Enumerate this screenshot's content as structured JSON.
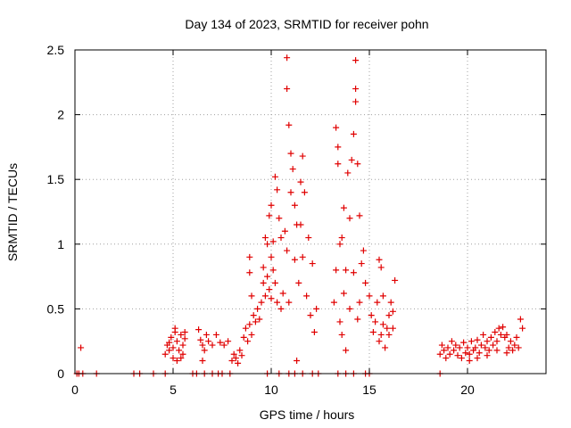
{
  "chart_data": {
    "type": "scatter",
    "title": "Day 134 of 2023, SRMTID for receiver pohn",
    "xlabel": "GPS time / hours",
    "ylabel": "SRMTID / TECUs",
    "xlim": [
      0,
      24
    ],
    "ylim": [
      0,
      2.5
    ],
    "xticks": [
      0,
      5,
      10,
      15,
      20
    ],
    "yticks": [
      0,
      0.5,
      1,
      1.5,
      2,
      2.5
    ],
    "xtick_labels": [
      "0",
      "5",
      "10",
      "15",
      "20"
    ],
    "ytick_labels": [
      "0",
      "0.5",
      "1",
      "1.5",
      "2",
      "2.5"
    ],
    "grid": true,
    "marker": "+",
    "color": "#e00000",
    "series": [
      {
        "name": "SRMTID",
        "points": [
          [
            0.3,
            0.2
          ],
          [
            0.1,
            0
          ],
          [
            0.2,
            0
          ],
          [
            0.4,
            0
          ],
          [
            1.1,
            0
          ],
          [
            3.0,
            0
          ],
          [
            3.3,
            0
          ],
          [
            4.0,
            0
          ],
          [
            4.6,
            0
          ],
          [
            6.0,
            0
          ],
          [
            6.2,
            0
          ],
          [
            6.6,
            0
          ],
          [
            7.0,
            0
          ],
          [
            7.3,
            0
          ],
          [
            7.5,
            0
          ],
          [
            7.9,
            0
          ],
          [
            9.8,
            0
          ],
          [
            10.4,
            0
          ],
          [
            10.9,
            0
          ],
          [
            11.2,
            0
          ],
          [
            11.6,
            0
          ],
          [
            12.1,
            0
          ],
          [
            12.4,
            0
          ],
          [
            13.4,
            0
          ],
          [
            13.8,
            0
          ],
          [
            14.2,
            0
          ],
          [
            14.8,
            0
          ],
          [
            15.0,
            0
          ],
          [
            18.6,
            0
          ],
          [
            4.6,
            0.15
          ],
          [
            4.7,
            0.22
          ],
          [
            4.8,
            0.18
          ],
          [
            4.9,
            0.28
          ],
          [
            5.0,
            0.2
          ],
          [
            5.1,
            0.32
          ],
          [
            5.2,
            0.25
          ],
          [
            5.3,
            0.18
          ],
          [
            5.4,
            0.3
          ],
          [
            5.5,
            0.22
          ],
          [
            5.6,
            0.27
          ],
          [
            5.0,
            0.12
          ],
          [
            5.2,
            0.1
          ],
          [
            5.4,
            0.12
          ],
          [
            5.1,
            0.35
          ],
          [
            4.8,
            0.24
          ],
          [
            5.5,
            0.15
          ],
          [
            5.6,
            0.32
          ],
          [
            6.3,
            0.34
          ],
          [
            6.4,
            0.26
          ],
          [
            6.5,
            0.22
          ],
          [
            6.6,
            0.18
          ],
          [
            6.8,
            0.25
          ],
          [
            7.0,
            0.22
          ],
          [
            7.2,
            0.3
          ],
          [
            7.4,
            0.24
          ],
          [
            7.6,
            0.22
          ],
          [
            7.8,
            0.25
          ],
          [
            6.5,
            0.1
          ],
          [
            6.7,
            0.3
          ],
          [
            8.0,
            0.1
          ],
          [
            8.1,
            0.15
          ],
          [
            8.2,
            0.12
          ],
          [
            8.3,
            0.08
          ],
          [
            8.4,
            0.18
          ],
          [
            8.5,
            0.14
          ],
          [
            8.6,
            0.28
          ],
          [
            8.7,
            0.35
          ],
          [
            8.8,
            0.25
          ],
          [
            8.9,
            0.38
          ],
          [
            9.0,
            0.3
          ],
          [
            9.1,
            0.45
          ],
          [
            9.2,
            0.4
          ],
          [
            9.3,
            0.5
          ],
          [
            9.4,
            0.42
          ],
          [
            8.9,
            0.78
          ],
          [
            8.9,
            0.9
          ],
          [
            9.0,
            0.6
          ],
          [
            9.5,
            0.55
          ],
          [
            9.6,
            0.7
          ],
          [
            9.6,
            0.82
          ],
          [
            9.7,
            0.6
          ],
          [
            9.7,
            1.05
          ],
          [
            9.8,
            0.75
          ],
          [
            9.8,
            1.0
          ],
          [
            9.9,
            0.65
          ],
          [
            9.9,
            1.22
          ],
          [
            10.0,
            0.58
          ],
          [
            10.0,
            0.9
          ],
          [
            10.0,
            1.3
          ],
          [
            10.1,
            0.8
          ],
          [
            10.1,
            1.02
          ],
          [
            10.2,
            0.7
          ],
          [
            10.2,
            1.52
          ],
          [
            10.3,
            0.55
          ],
          [
            10.3,
            1.42
          ],
          [
            10.4,
            1.2
          ],
          [
            10.5,
            0.5
          ],
          [
            10.5,
            1.05
          ],
          [
            10.6,
            0.62
          ],
          [
            10.7,
            1.1
          ],
          [
            10.8,
            0.95
          ],
          [
            10.8,
            2.2
          ],
          [
            10.8,
            2.44
          ],
          [
            10.9,
            1.92
          ],
          [
            10.9,
            0.55
          ],
          [
            11.0,
            1.7
          ],
          [
            11.0,
            1.4
          ],
          [
            11.1,
            1.58
          ],
          [
            11.2,
            1.3
          ],
          [
            11.2,
            0.88
          ],
          [
            11.3,
            0.1
          ],
          [
            11.3,
            1.15
          ],
          [
            11.4,
            0.7
          ],
          [
            11.5,
            1.48
          ],
          [
            11.5,
            1.15
          ],
          [
            11.6,
            1.68
          ],
          [
            11.6,
            0.9
          ],
          [
            11.7,
            1.4
          ],
          [
            11.8,
            0.6
          ],
          [
            11.9,
            1.05
          ],
          [
            12.0,
            0.45
          ],
          [
            12.1,
            0.85
          ],
          [
            12.2,
            0.32
          ],
          [
            12.3,
            0.5
          ],
          [
            13.2,
            0.55
          ],
          [
            13.3,
            0.8
          ],
          [
            13.3,
            1.9
          ],
          [
            13.4,
            1.75
          ],
          [
            13.4,
            1.62
          ],
          [
            13.5,
            1.0
          ],
          [
            13.5,
            0.4
          ],
          [
            13.6,
            1.05
          ],
          [
            13.6,
            0.3
          ],
          [
            13.7,
            1.28
          ],
          [
            13.7,
            0.62
          ],
          [
            13.8,
            0.8
          ],
          [
            13.8,
            0.18
          ],
          [
            13.9,
            1.55
          ],
          [
            14.0,
            1.2
          ],
          [
            14.0,
            0.5
          ],
          [
            14.1,
            1.65
          ],
          [
            14.2,
            1.85
          ],
          [
            14.2,
            0.78
          ],
          [
            14.3,
            2.1
          ],
          [
            14.3,
            2.2
          ],
          [
            14.3,
            2.42
          ],
          [
            14.4,
            1.62
          ],
          [
            14.4,
            0.42
          ],
          [
            14.5,
            1.22
          ],
          [
            14.5,
            0.55
          ],
          [
            14.6,
            0.85
          ],
          [
            14.7,
            0.95
          ],
          [
            14.8,
            0.7
          ],
          [
            15.0,
            0.6
          ],
          [
            15.1,
            0.45
          ],
          [
            15.2,
            0.32
          ],
          [
            15.3,
            0.4
          ],
          [
            15.4,
            0.55
          ],
          [
            15.5,
            0.88
          ],
          [
            15.5,
            0.25
          ],
          [
            15.6,
            0.3
          ],
          [
            15.7,
            0.38
          ],
          [
            15.8,
            0.2
          ],
          [
            15.9,
            0.35
          ],
          [
            16.0,
            0.45
          ],
          [
            16.1,
            0.55
          ],
          [
            16.2,
            0.35
          ],
          [
            16.3,
            0.72
          ],
          [
            15.6,
            0.82
          ],
          [
            15.7,
            0.6
          ],
          [
            16.0,
            0.3
          ],
          [
            16.2,
            0.48
          ],
          [
            18.6,
            0.15
          ],
          [
            18.7,
            0.22
          ],
          [
            18.8,
            0.18
          ],
          [
            18.9,
            0.12
          ],
          [
            19.0,
            0.2
          ],
          [
            19.1,
            0.15
          ],
          [
            19.2,
            0.25
          ],
          [
            19.3,
            0.18
          ],
          [
            19.4,
            0.22
          ],
          [
            19.5,
            0.14
          ],
          [
            19.6,
            0.2
          ],
          [
            19.7,
            0.12
          ],
          [
            19.8,
            0.24
          ],
          [
            19.9,
            0.16
          ],
          [
            20.0,
            0.2
          ],
          [
            20.1,
            0.15
          ],
          [
            20.2,
            0.25
          ],
          [
            20.3,
            0.18
          ],
          [
            20.4,
            0.2
          ],
          [
            20.5,
            0.26
          ],
          [
            20.6,
            0.16
          ],
          [
            20.7,
            0.22
          ],
          [
            20.8,
            0.3
          ],
          [
            20.9,
            0.2
          ],
          [
            21.0,
            0.25
          ],
          [
            21.1,
            0.18
          ],
          [
            21.2,
            0.28
          ],
          [
            21.3,
            0.22
          ],
          [
            21.4,
            0.32
          ],
          [
            21.5,
            0.25
          ],
          [
            21.6,
            0.35
          ],
          [
            21.7,
            0.3
          ],
          [
            21.8,
            0.36
          ],
          [
            21.9,
            0.28
          ],
          [
            22.0,
            0.3
          ],
          [
            22.1,
            0.2
          ],
          [
            22.2,
            0.25
          ],
          [
            22.3,
            0.18
          ],
          [
            22.4,
            0.22
          ],
          [
            22.5,
            0.28
          ],
          [
            22.6,
            0.2
          ],
          [
            22.7,
            0.42
          ],
          [
            22.8,
            0.35
          ],
          [
            20.1,
            0.1
          ],
          [
            20.5,
            0.12
          ],
          [
            21.0,
            0.14
          ],
          [
            21.5,
            0.18
          ],
          [
            22.0,
            0.16
          ]
        ]
      }
    ]
  }
}
